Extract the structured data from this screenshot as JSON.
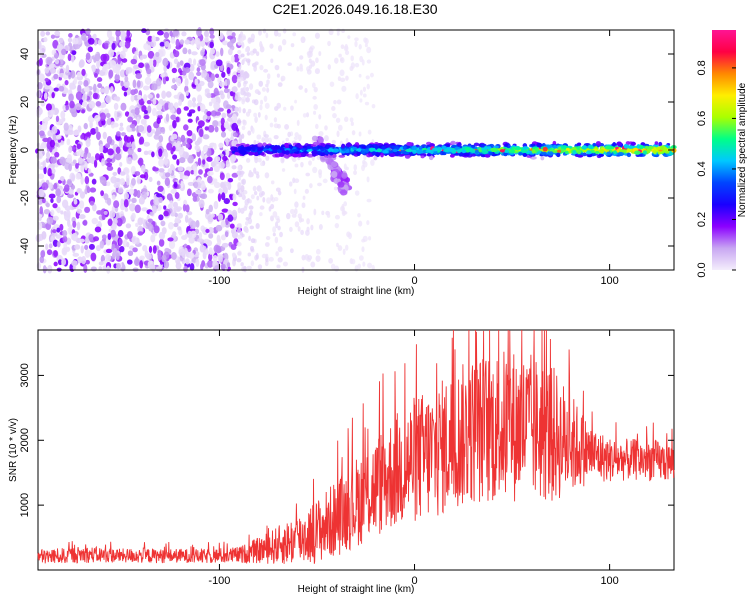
{
  "title": "C2E1.2026.049.16.18.E30",
  "chart_data": [
    {
      "type": "heatmap",
      "xlabel": "Height of straight line (km)",
      "ylabel": "Frequency (Hz)",
      "xlim": [
        -193,
        133
      ],
      "ylim": [
        -50,
        50
      ],
      "xticks": [
        -100,
        0,
        100
      ],
      "yticks": [
        -40,
        -20,
        0,
        20,
        40
      ],
      "colorbar": {
        "label": "Normalized spectral amplitude",
        "range": [
          0.0,
          0.95
        ],
        "ticks": [
          "0.0",
          "0.2",
          "0.4",
          "0.6",
          "0.8"
        ],
        "tick_values": [
          0.0,
          0.2,
          0.4,
          0.6,
          0.8
        ],
        "colors": [
          "#f4eefc",
          "#c8a6f2",
          "#8b00ff",
          "#1a00ff",
          "#0044ff",
          "#00c8ff",
          "#00ff88",
          "#aaff00",
          "#ffee00",
          "#ff8800",
          "#ff0044",
          "#ff1493"
        ]
      },
      "regions": [
        {
          "name": "noise",
          "x_range": [
            -193,
            -90
          ],
          "freq_range": [
            -50,
            50
          ],
          "amplitude": 0.05
        },
        {
          "name": "transition",
          "x_range": [
            -90,
            -20
          ],
          "freq_range": [
            -50,
            50
          ],
          "amplitude": 0.02
        },
        {
          "name": "signal_band",
          "x_range": [
            -93,
            133
          ],
          "center_freq": 0,
          "bandwidth": 6,
          "amplitude_max": 0.95
        },
        {
          "name": "side_branch",
          "x_range": [
            -50,
            -35
          ],
          "freq_range": [
            -18,
            8
          ],
          "amplitude": 0.1
        }
      ]
    },
    {
      "type": "line",
      "xlabel": "Height of straight line (km)",
      "ylabel": "SNR (10 * v/v)",
      "xlim": [
        -193,
        133
      ],
      "ylim": [
        0,
        3700
      ],
      "xticks": [
        -100,
        0,
        100
      ],
      "yticks": [
        1000,
        2000,
        3000
      ],
      "series": [
        {
          "name": "SNR",
          "color": "#ee3333",
          "x": [
            -193,
            -180,
            -170,
            -160,
            -150,
            -140,
            -130,
            -120,
            -110,
            -100,
            -90,
            -80,
            -70,
            -60,
            -50,
            -40,
            -30,
            -20,
            -10,
            0,
            10,
            20,
            30,
            40,
            50,
            60,
            70,
            80,
            90,
            100,
            110,
            120,
            133
          ],
          "y": [
            200,
            220,
            240,
            230,
            220,
            225,
            215,
            220,
            210,
            220,
            230,
            300,
            380,
            470,
            600,
            800,
            1050,
            1280,
            1520,
            1700,
            1800,
            2000,
            2150,
            2200,
            2230,
            2200,
            2100,
            1950,
            1800,
            1700,
            1700,
            1700,
            1650
          ],
          "spread": [
            120,
            120,
            130,
            120,
            110,
            120,
            110,
            110,
            110,
            120,
            130,
            200,
            300,
            400,
            500,
            600,
            700,
            800,
            900,
            1000,
            1050,
            1100,
            1150,
            1200,
            1200,
            1150,
            1100,
            800,
            450,
            350,
            320,
            330,
            300
          ]
        }
      ]
    }
  ]
}
